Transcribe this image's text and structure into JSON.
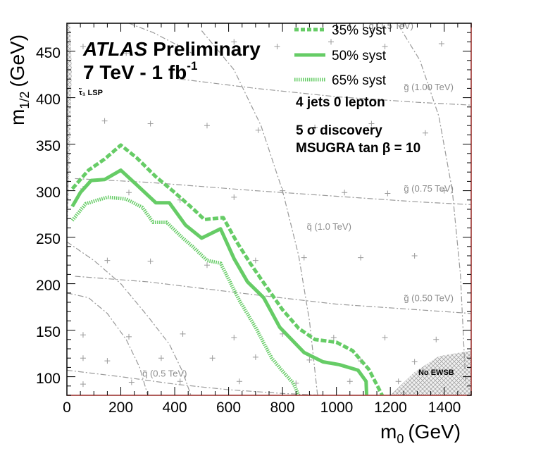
{
  "chart_data": {
    "type": "line",
    "title_italic": "ATLAS",
    "title_rest": "Preliminary",
    "subtitle": "7 TeV - 1 fb",
    "subtitle_sup": "-1",
    "xlabel": "m",
    "xlabel_sub": "0",
    "xlabel_unit": "(GeV)",
    "ylabel": "m",
    "ylabel_sub": "1/2",
    "ylabel_unit": "(GeV)",
    "xlim": [
      0,
      1500
    ],
    "ylim": [
      80,
      480
    ],
    "xticks": [
      "0",
      "200",
      "400",
      "600",
      "800",
      "1000",
      "1200",
      "1400"
    ],
    "yticks": [
      "100",
      "150",
      "200",
      "250",
      "300",
      "350",
      "400",
      "450"
    ],
    "annotations": {
      "lsp": "τ̃₁ LSP",
      "channel": "4 jets 0 lepton",
      "discovery": "5 σ discovery",
      "model": "MSUGRA tan β = 10",
      "no_ewsb": "No EWSB"
    },
    "legend": [
      {
        "label": "35% syst",
        "style": "dashed"
      },
      {
        "label": "50% syst",
        "style": "solid"
      },
      {
        "label": "65% syst",
        "style": "dotted"
      }
    ],
    "series": [
      {
        "name": "35% syst",
        "style": "dashed",
        "color": "#66cc66",
        "x": [
          20,
          80,
          140,
          200,
          260,
          330,
          400,
          470,
          510,
          580,
          630,
          680,
          730,
          800,
          860,
          920,
          1000,
          1060,
          1120,
          1170
        ],
        "y": [
          302,
          322,
          334,
          349,
          335,
          315,
          298,
          280,
          269,
          271,
          245,
          222,
          201,
          172,
          152,
          140,
          137,
          128,
          108,
          80
        ]
      },
      {
        "name": "50% syst",
        "style": "solid",
        "color": "#66cc66",
        "x": [
          20,
          50,
          90,
          140,
          200,
          260,
          330,
          380,
          440,
          500,
          570,
          620,
          670,
          730,
          790,
          880,
          950,
          1010,
          1080,
          1110,
          1112
        ],
        "y": [
          283,
          298,
          311,
          312,
          322,
          306,
          287,
          287,
          263,
          249,
          259,
          227,
          202,
          185,
          153,
          126,
          116,
          113,
          107,
          95,
          80
        ]
      },
      {
        "name": "65% syst",
        "style": "dotted",
        "color": "#66cc66",
        "x": [
          20,
          70,
          150,
          220,
          280,
          320,
          370,
          430,
          470,
          520,
          570,
          640,
          700,
          760,
          800,
          840,
          860
        ],
        "y": [
          268,
          286,
          293,
          291,
          282,
          266,
          266,
          249,
          239,
          225,
          222,
          182,
          153,
          120,
          106,
          93,
          80
        ]
      }
    ],
    "overlays": [
      {
        "name": "squark 0.5 TeV",
        "label": "q̃ (0.5 TeV)",
        "x": [
          0,
          100,
          200,
          300,
          380,
          430,
          460
        ],
        "y": [
          245,
          225,
          200,
          165,
          135,
          105,
          80
        ]
      },
      {
        "name": "squark 1.0 TeV",
        "label": "q̃ (1.0 TeV)",
        "x": [
          500,
          620,
          720,
          800,
          860,
          900,
          930
        ],
        "y": [
          472,
          430,
          370,
          300,
          230,
          160,
          80
        ]
      },
      {
        "name": "squark 1.5 TeV",
        "label": "q̃ (1.5 TeV)",
        "x": [
          1230,
          1310,
          1380,
          1430,
          1460,
          1480
        ],
        "y": [
          478,
          440,
          380,
          300,
          210,
          90
        ]
      },
      {
        "name": "gluino 0.50 TeV",
        "label": "g̃ (0.50 TeV)",
        "x": [
          30,
          300,
          700,
          1000,
          1300,
          1500
        ],
        "y": [
          208,
          202,
          188,
          178,
          172,
          168
        ]
      },
      {
        "name": "gluino 0.75 TeV",
        "label": "g̃ (0.75 TeV)",
        "x": [
          30,
          300,
          700,
          1000,
          1300,
          1500
        ],
        "y": [
          313,
          309,
          300,
          294,
          288,
          285
        ]
      },
      {
        "name": "gluino 1.00 TeV",
        "label": "g̃ (1.00 TeV)",
        "x": [
          420,
          700,
          1000,
          1300,
          1500
        ],
        "y": [
          420,
          410,
          401,
          395,
          392
        ]
      },
      {
        "name": "low m0 curve",
        "label": "",
        "x": [
          0,
          80,
          150,
          220,
          270,
          300
        ],
        "y": [
          190,
          185,
          168,
          140,
          110,
          80
        ]
      },
      {
        "name": "bottom curve",
        "label": "",
        "x": [
          0,
          200,
          400,
          600,
          800,
          950
        ],
        "y": [
          107,
          100,
          92,
          86,
          82,
          80
        ]
      },
      {
        "name": "top-left curve",
        "label": "",
        "x": [
          230,
          320,
          420,
          480
        ],
        "y": [
          480,
          470,
          455,
          445
        ]
      }
    ],
    "grid_points": [
      [
        60,
        455
      ],
      [
        220,
        448
      ],
      [
        410,
        455
      ],
      [
        620,
        460
      ],
      [
        780,
        455
      ],
      [
        980,
        460
      ],
      [
        1180,
        455
      ],
      [
        1390,
        458
      ],
      [
        140,
        375
      ],
      [
        310,
        372
      ],
      [
        520,
        370
      ],
      [
        710,
        365
      ],
      [
        920,
        368
      ],
      [
        1130,
        372
      ],
      [
        1330,
        362
      ],
      [
        60,
        302
      ],
      [
        230,
        298
      ],
      [
        420,
        290
      ],
      [
        620,
        293
      ],
      [
        800,
        300
      ],
      [
        1030,
        298
      ],
      [
        1190,
        297
      ],
      [
        1400,
        300
      ],
      [
        150,
        225
      ],
      [
        310,
        224
      ],
      [
        520,
        220
      ],
      [
        700,
        225
      ],
      [
        880,
        228
      ],
      [
        1090,
        228
      ],
      [
        1290,
        230
      ],
      [
        60,
        145
      ],
      [
        230,
        143
      ],
      [
        430,
        146
      ],
      [
        620,
        142
      ],
      [
        800,
        146
      ],
      [
        990,
        142
      ],
      [
        1180,
        142
      ],
      [
        1370,
        140
      ],
      [
        60,
        120
      ],
      [
        150,
        117
      ],
      [
        350,
        120
      ],
      [
        540,
        120
      ],
      [
        700,
        121
      ],
      [
        900,
        118
      ],
      [
        1090,
        117
      ],
      [
        1290,
        116
      ],
      [
        60,
        92
      ],
      [
        240,
        94
      ],
      [
        420,
        95
      ],
      [
        640,
        95
      ],
      [
        850,
        93
      ],
      [
        1050,
        95
      ],
      [
        1230,
        95
      ]
    ]
  }
}
